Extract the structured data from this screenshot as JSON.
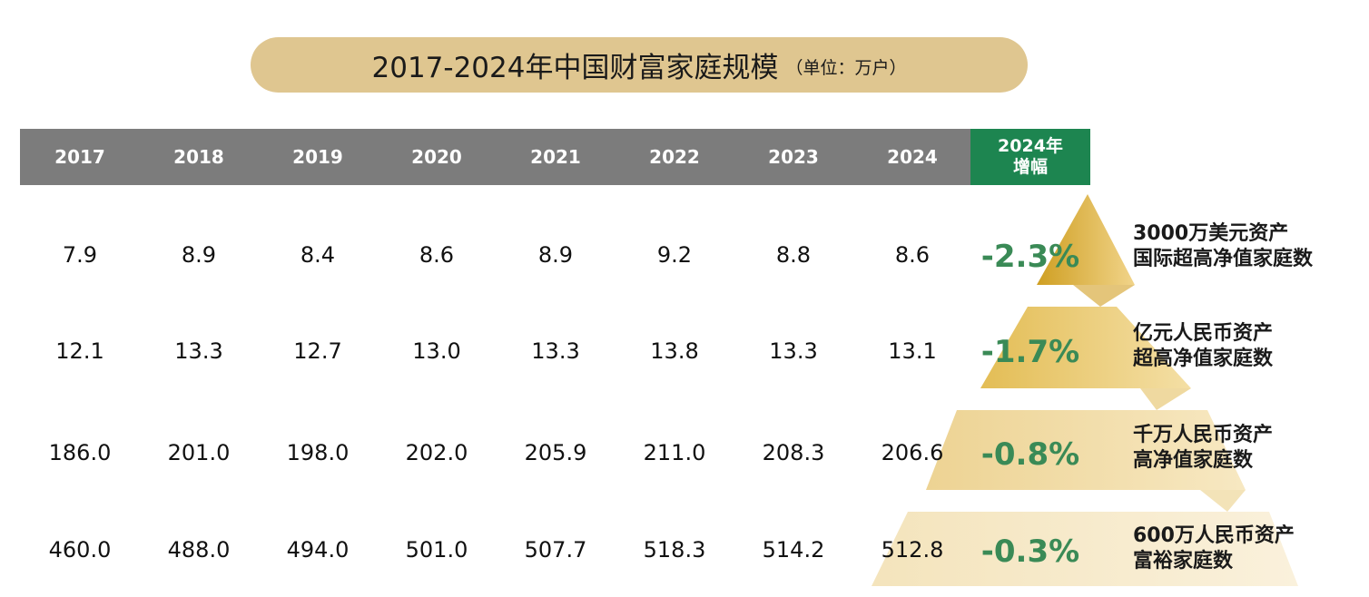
{
  "title": "2017-2024年中国财富家庭规模",
  "unit": "（单位：万户）",
  "chart_data": {
    "type": "table",
    "columns": [
      "2017",
      "2018",
      "2019",
      "2020",
      "2021",
      "2022",
      "2023",
      "2024"
    ],
    "growth_header": [
      "2024年",
      "增幅"
    ],
    "rows": [
      {
        "label_lines": [
          "3000万美元资产",
          "国际超高净值家庭数"
        ],
        "values": [
          "7.9",
          "8.9",
          "8.4",
          "8.6",
          "8.9",
          "9.2",
          "8.8",
          "8.6"
        ],
        "growth": "-2.3%"
      },
      {
        "label_lines": [
          "亿元人民币资产",
          "超高净值家庭数"
        ],
        "values": [
          "12.1",
          "13.3",
          "12.7",
          "13.0",
          "13.3",
          "13.8",
          "13.3",
          "13.1"
        ],
        "growth": "-1.7%"
      },
      {
        "label_lines": [
          "千万人民币资产",
          "高净值家庭数"
        ],
        "values": [
          "186.0",
          "201.0",
          "198.0",
          "202.0",
          "205.9",
          "211.0",
          "208.3",
          "206.6"
        ],
        "growth": "-0.8%"
      },
      {
        "label_lines": [
          "600万人民币资产",
          "富裕家庭数"
        ],
        "values": [
          "460.0",
          "488.0",
          "494.0",
          "501.0",
          "507.7",
          "518.3",
          "514.2",
          "512.8"
        ],
        "growth": "-0.3%"
      }
    ]
  },
  "colors": {
    "title_pill": "#dfc690",
    "header_gray": "#7c7c7c",
    "header_green": "#1d8550",
    "growth_text": "#3a8a56",
    "pyramid_gold": "#d4a72c",
    "pyramid_light": "#f5e7c4"
  }
}
